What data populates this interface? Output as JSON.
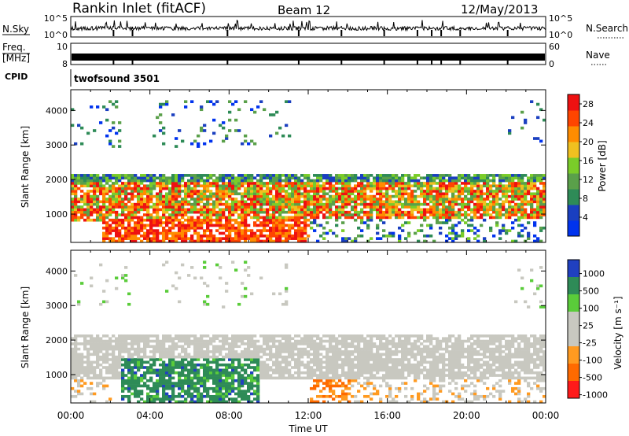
{
  "header": {
    "station": "Rankin Inlet (fitACF)",
    "beam": "Beam 12",
    "date": "12/May/2013"
  },
  "top_panels": {
    "nsky_label": "N.Sky",
    "nsky_ticks": [
      "10^5",
      "10^0"
    ],
    "nsearch_label": "N.Search",
    "nsearch_ticks": [
      "10^5",
      "10^0"
    ],
    "freq_label_line1": "Freq.",
    "freq_label_line2": "[MHz]",
    "freq_ticks": [
      "10",
      "8"
    ],
    "nave_label": "Nave",
    "nave_ticks": [
      "60",
      "0"
    ],
    "cpid_label": "CPID",
    "cpid_value": "twofsound 3501"
  },
  "colors": {
    "power": [
      "#0033ee",
      "#1a3fc0",
      "#2e8b57",
      "#5aa04a",
      "#7acc29",
      "#f0c020",
      "#ff8c00",
      "#ff4500",
      "#ee1111"
    ],
    "velocity": [
      "#2040c0",
      "#2e8b57",
      "#5acc3a",
      "#c8c8c0",
      "#c8c8c0",
      "#ff9a20",
      "#ff6a00",
      "#ff1a1a"
    ]
  },
  "chart_data": [
    {
      "type": "heatmap",
      "title": "Power",
      "xlabel": "",
      "ylabel": "Slant Range [km]",
      "x_ticks": [
        "00:00",
        "04:00",
        "08:00",
        "12:00",
        "16:00",
        "20:00",
        "00:00"
      ],
      "y_ticks": [
        1000,
        2000,
        3000,
        4000
      ],
      "ylim": [
        180,
        4600
      ],
      "colorbar_label": "Power [dB]",
      "colorbar_ticks": [
        4,
        8,
        12,
        16,
        20,
        24,
        28
      ],
      "colorbar_range": [
        0,
        30
      ]
    },
    {
      "type": "heatmap",
      "title": "Velocity",
      "xlabel": "Time UT",
      "ylabel": "Slant Range [km]",
      "x_ticks": [
        "00:00",
        "04:00",
        "08:00",
        "12:00",
        "16:00",
        "20:00",
        "00:00"
      ],
      "y_ticks": [
        1000,
        2000,
        3000,
        4000
      ],
      "ylim": [
        180,
        4600
      ],
      "colorbar_label": "Velocity [m s⁻¹]",
      "colorbar_ticks": [
        1000,
        500,
        100,
        25,
        -25,
        -100,
        -500,
        -1000
      ]
    }
  ]
}
